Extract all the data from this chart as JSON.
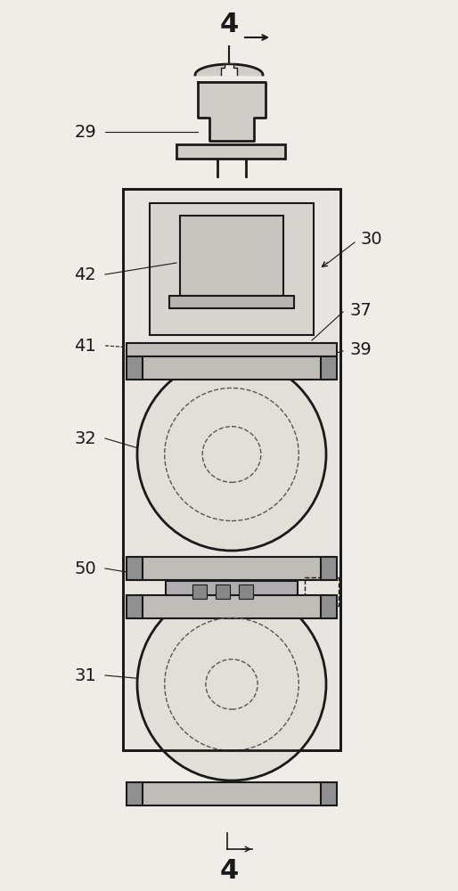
{
  "bg_color": "#f0ede8",
  "line_color": "#1a1a1a",
  "dashed_color": "#555555",
  "figsize": [
    5.14,
    10.0
  ],
  "dpi": 100
}
